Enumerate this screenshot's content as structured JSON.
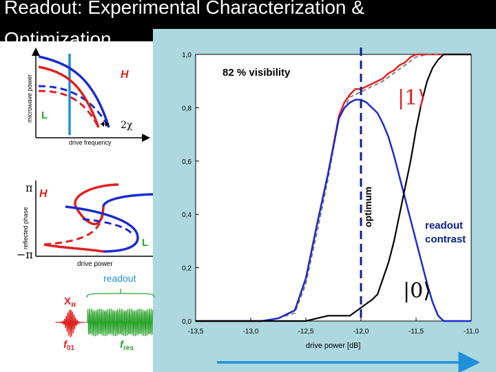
{
  "slide": {
    "title": "Readout: Experimental Characterization & Optimization"
  },
  "left_top_plot": {
    "ylabel": "microwave power",
    "xlabel": "drive frequency",
    "label_H": "H",
    "label_L": "L",
    "chi_label": "2χ"
  },
  "left_mid_plot": {
    "ylabel": "reflected phase",
    "xlabel": "drive power",
    "tick_top": "π",
    "tick_bottom": "−π",
    "label_H": "H",
    "label_L": "L"
  },
  "pulse_diagram": {
    "readout_label": "readout",
    "x_pi_label": "X",
    "x_pi_sub": "π",
    "f01_label": "f",
    "f01_sub": "01",
    "fres_label": "f",
    "fres_sub": "res"
  },
  "colors": {
    "red": "#e02020",
    "blue": "#1a2ccc",
    "black": "#000000",
    "green": "#2aa22a",
    "cyan": "#1e90d8",
    "panel": "#add8df",
    "optimum": "#0b1f8a"
  },
  "chart_data": {
    "type": "line",
    "xlabel": "drive power [dB]",
    "ylabel": "",
    "xlim": [
      -13.5,
      -11.0
    ],
    "ylim": [
      0.0,
      1.0
    ],
    "x_ticks": [
      "-13,5",
      "-13,0",
      "-12,5",
      "-12,0",
      "-11,5",
      "-11,0"
    ],
    "y_ticks": [
      "0,0",
      "0,2",
      "0,4",
      "0,6",
      "0,8",
      "1,0"
    ],
    "annotations": {
      "visibility": "82 % visibility",
      "optimum": "optimum",
      "readout_contrast": [
        "readout",
        "contrast"
      ],
      "state_one": "|1⟩",
      "state_zero": "|0⟩"
    },
    "optimum_x": -12.0,
    "series": [
      {
        "key": "red",
        "x": [
          -13.5,
          -12.9,
          -12.75,
          -12.6,
          -12.5,
          -12.4,
          -12.3,
          -12.2,
          -12.15,
          -12.1,
          -12.05,
          -12.0,
          -11.95,
          -11.9,
          -11.85,
          -11.8,
          -11.75,
          -11.7,
          -11.65,
          -11.6,
          -11.55,
          -11.5,
          -11.4,
          -11.0
        ],
        "y": [
          0.0,
          0.0,
          0.01,
          0.04,
          0.16,
          0.36,
          0.55,
          0.77,
          0.82,
          0.85,
          0.87,
          0.87,
          0.88,
          0.89,
          0.9,
          0.91,
          0.93,
          0.94,
          0.96,
          0.97,
          0.99,
          1.0,
          1.0,
          1.0
        ]
      },
      {
        "key": "red-dashed",
        "x": [
          -13.5,
          -12.9,
          -12.75,
          -12.6,
          -12.5,
          -12.4,
          -12.3,
          -12.2,
          -12.1,
          -12.0,
          -11.9,
          -11.8,
          -11.7,
          -11.6,
          -11.5,
          -11.4,
          -11.0
        ],
        "y": [
          0.0,
          0.0,
          0.01,
          0.03,
          0.14,
          0.33,
          0.53,
          0.76,
          0.84,
          0.86,
          0.88,
          0.9,
          0.93,
          0.96,
          0.99,
          1.0,
          1.0
        ]
      },
      {
        "key": "blue",
        "x": [
          -13.5,
          -12.9,
          -12.75,
          -12.6,
          -12.5,
          -12.4,
          -12.3,
          -12.2,
          -12.15,
          -12.1,
          -12.05,
          -12.0,
          -11.95,
          -11.9,
          -11.85,
          -11.8,
          -11.75,
          -11.7,
          -11.65,
          -11.6,
          -11.55,
          -11.5,
          -11.45,
          -11.4,
          -11.35,
          -11.3,
          -11.25,
          -11.2,
          -11.0
        ],
        "y": [
          0.0,
          0.0,
          0.01,
          0.04,
          0.16,
          0.36,
          0.55,
          0.76,
          0.8,
          0.82,
          0.83,
          0.83,
          0.82,
          0.8,
          0.78,
          0.74,
          0.69,
          0.62,
          0.54,
          0.46,
          0.38,
          0.3,
          0.22,
          0.14,
          0.07,
          0.02,
          0.0,
          0.0,
          0.0
        ]
      },
      {
        "key": "black",
        "x": [
          -13.5,
          -12.5,
          -12.3,
          -12.2,
          -12.1,
          -12.0,
          -11.9,
          -11.85,
          -11.8,
          -11.75,
          -11.7,
          -11.65,
          -11.6,
          -11.55,
          -11.5,
          -11.45,
          -11.4,
          -11.35,
          -11.3,
          -11.25,
          -11.2,
          -11.0
        ],
        "y": [
          0.0,
          0.0,
          0.02,
          0.02,
          0.02,
          0.05,
          0.08,
          0.1,
          0.16,
          0.22,
          0.3,
          0.4,
          0.5,
          0.6,
          0.72,
          0.82,
          0.9,
          0.95,
          0.98,
          1.0,
          1.0,
          1.0
        ]
      }
    ]
  }
}
